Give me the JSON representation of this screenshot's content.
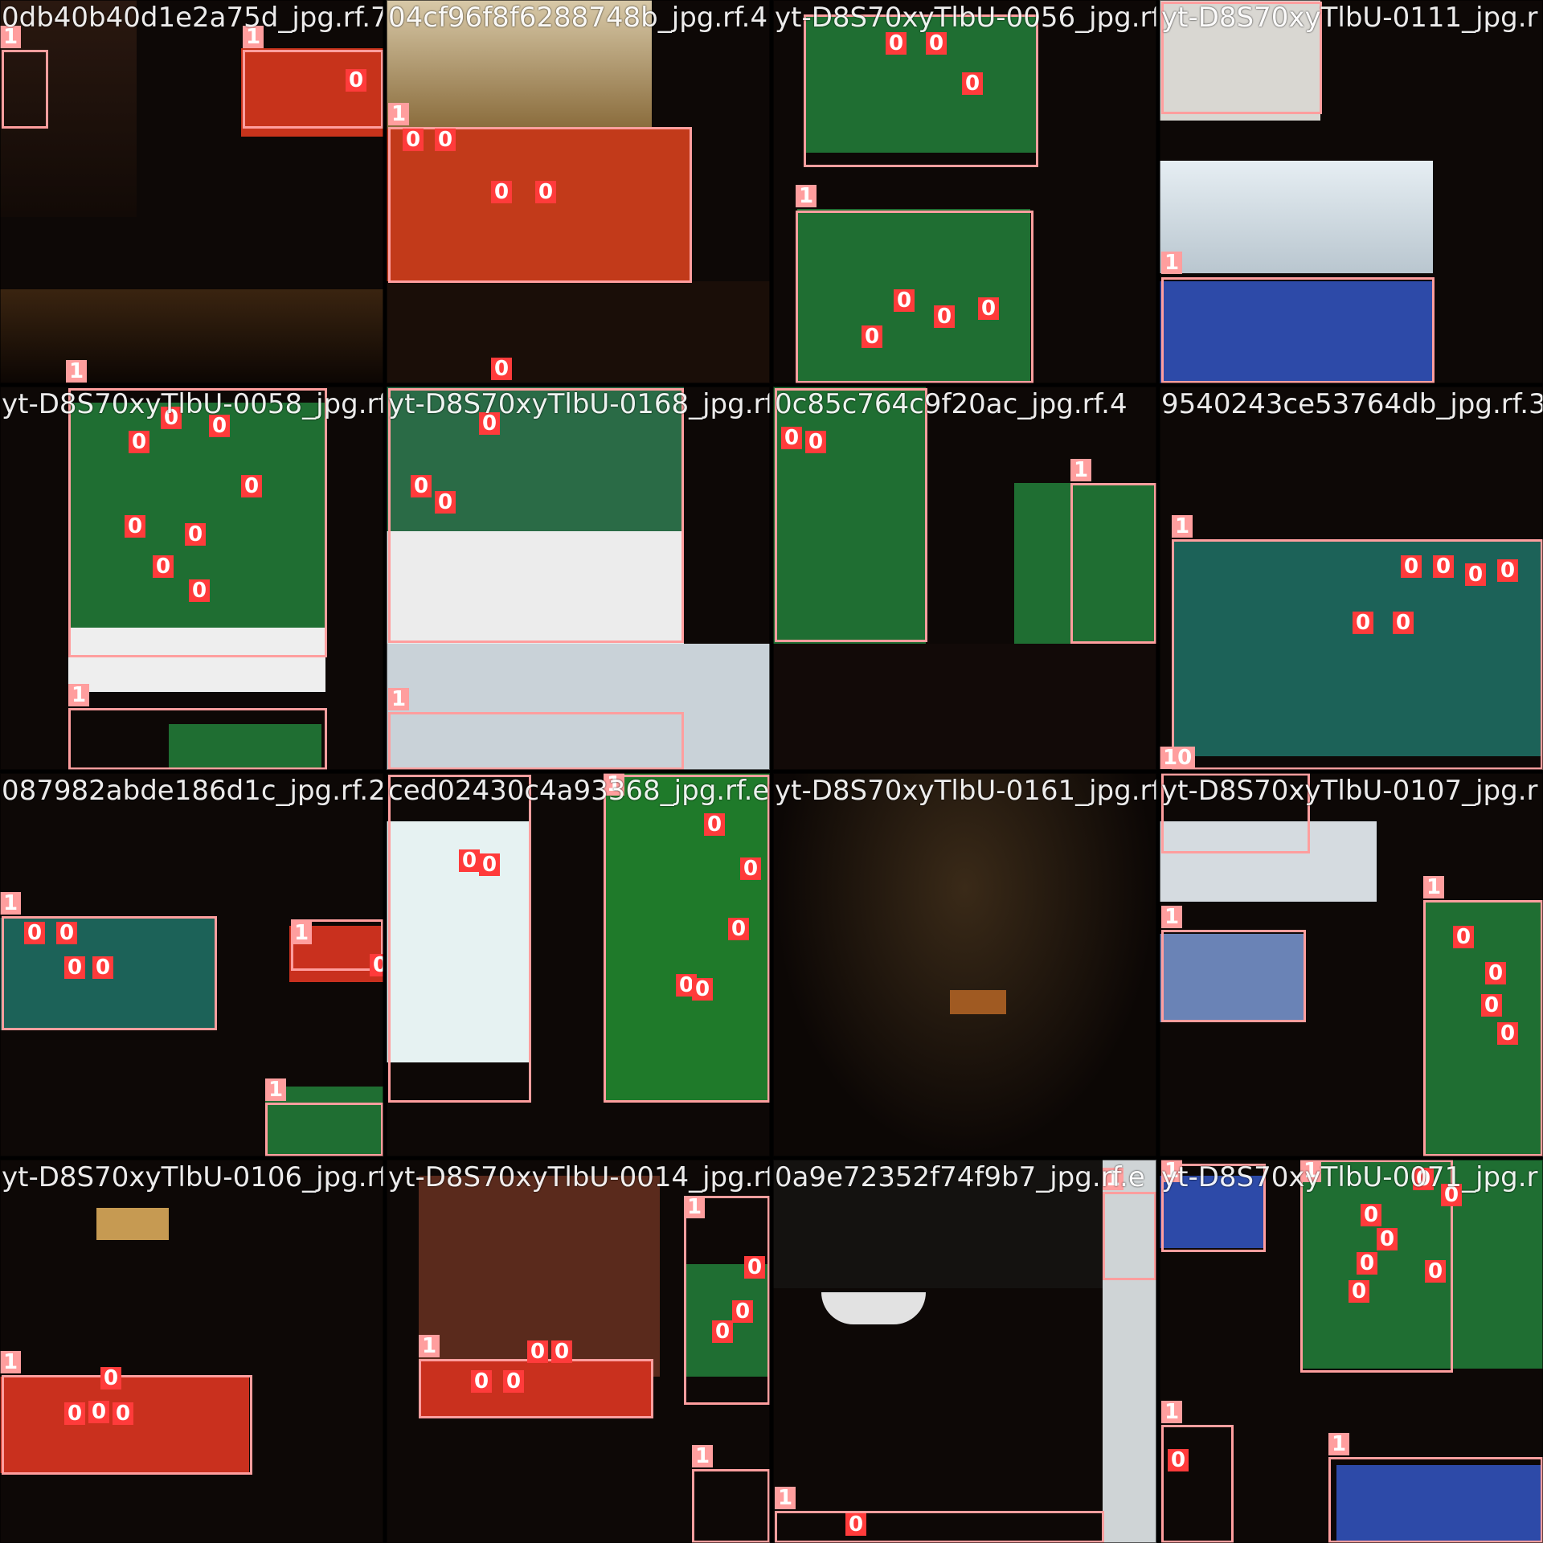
{
  "tiles": [
    {
      "title": "0db40b40d1e2a75d_jpg.rf.7"
    },
    {
      "title": "04cf96f8f6288748b_jpg.rf.4"
    },
    {
      "title": "yt-D8S70xyTlbU-0056_jpg.rf"
    },
    {
      "title": "yt-D8S70xyTlbU-0111_jpg.r"
    },
    {
      "title": "yt-D8S70xyTlbU-0058_jpg.rf"
    },
    {
      "title": "yt-D8S70xyTlbU-0168_jpg.rf"
    },
    {
      "title": "0c85c764c9f20ac_jpg.rf.4"
    },
    {
      "title": "9540243ce53764db_jpg.rf.3"
    },
    {
      "title": "087982abde186d1c_jpg.rf.2"
    },
    {
      "title": "ced02430c4a93368_jpg.rf.ef"
    },
    {
      "title": "yt-D8S70xyTlbU-0161_jpg.rf"
    },
    {
      "title": "yt-D8S70xyTlbU-0107_jpg.r"
    },
    {
      "title": "yt-D8S70xyTlbU-0106_jpg.rf"
    },
    {
      "title": "yt-D8S70xyTlbU-0014_jpg.rf"
    },
    {
      "title": "0a9e72352f74f9b7_jpg.rf.e"
    },
    {
      "title": "yt-D8S70xyTlbU-0071_jpg.r"
    }
  ],
  "labels": {
    "ball": "0",
    "table": "1",
    "ten": "10"
  },
  "colors": {
    "table_box": "#ff9e9e",
    "ball_box": "#ff2a2a",
    "felt_green": "#1f6e32",
    "felt_blue": "#2d4aa8",
    "felt_red": "#c9301e",
    "felt_teal": "#1c6258"
  }
}
